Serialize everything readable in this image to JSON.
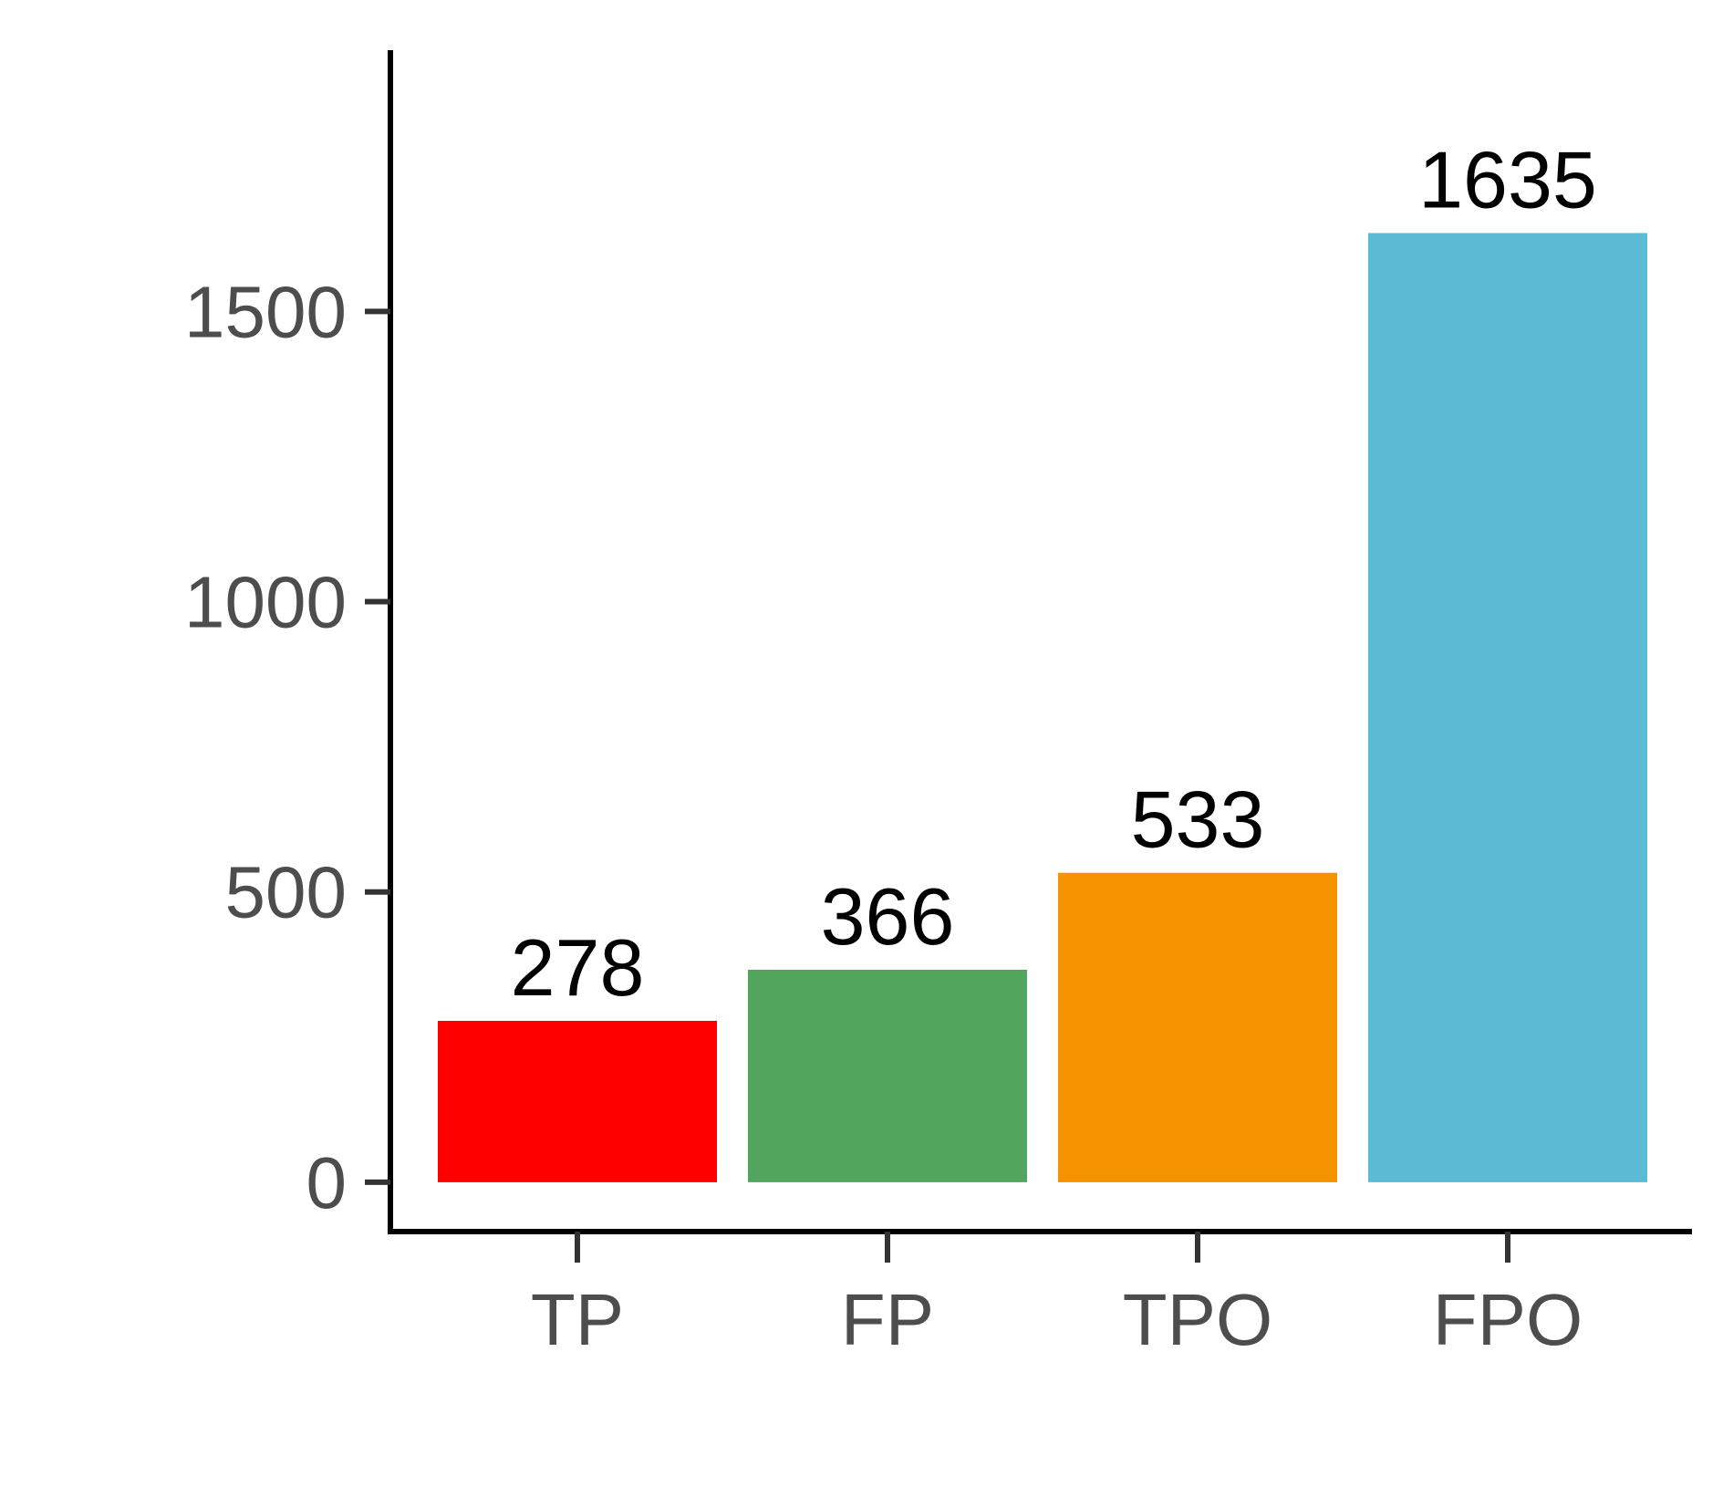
{
  "chart_data": {
    "type": "bar",
    "title": "",
    "xlabel": "",
    "ylabel": "",
    "categories": [
      "TP",
      "FP",
      "TPO",
      "FPO"
    ],
    "values": [
      278,
      366,
      533,
      1635
    ],
    "data_labels": [
      "278",
      "366",
      "533",
      "1635"
    ],
    "colors": [
      "#ff0000",
      "#52a55d",
      "#f49200",
      "#5bbbd4"
    ],
    "ylim": [
      -85,
      1950
    ],
    "yticks": [
      0,
      500,
      1000,
      1500
    ],
    "ytick_labels": [
      "0",
      "500",
      "1000",
      "1500"
    ],
    "grid": false,
    "legend": "none"
  }
}
